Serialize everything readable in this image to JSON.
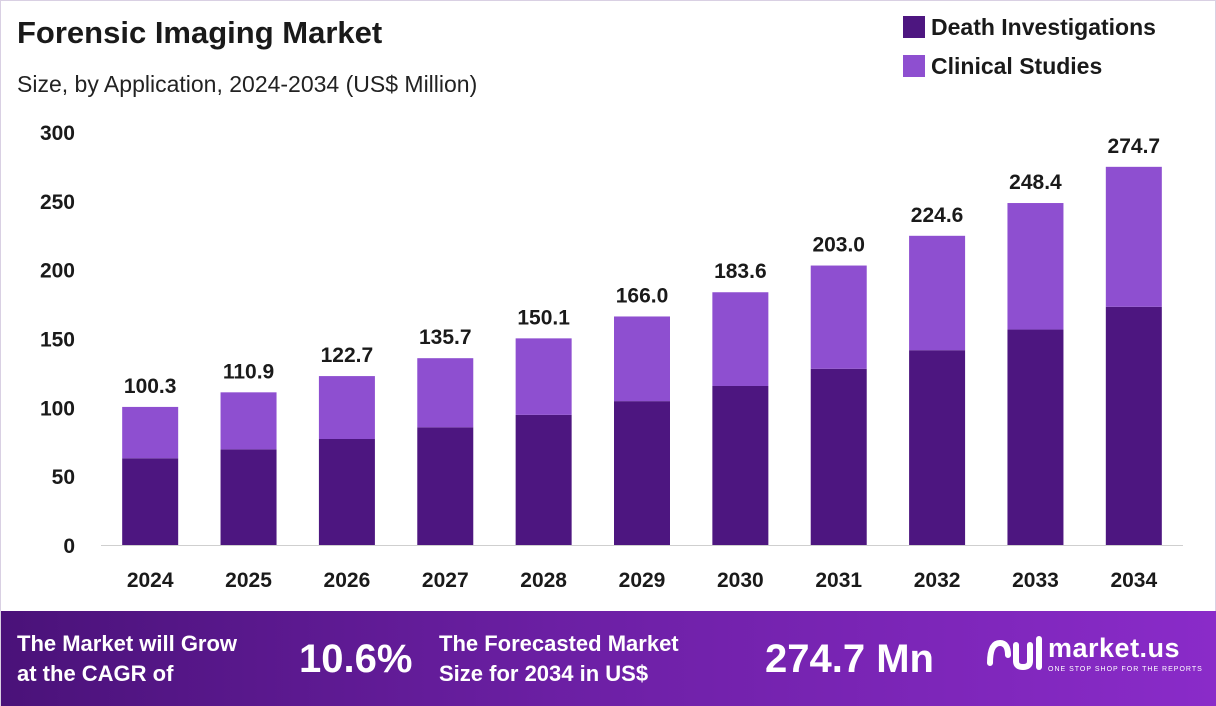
{
  "header": {
    "title": "Forensic Imaging Market",
    "subtitle": "Size, by Application, 2024-2034 (US$ Million)"
  },
  "legend": {
    "items": [
      {
        "label": "Death Investigations",
        "color": "#4d1680"
      },
      {
        "label": "Clinical Studies",
        "color": "#8e4fd0"
      }
    ]
  },
  "chart_data": {
    "type": "bar",
    "stacked": true,
    "categories": [
      "2024",
      "2025",
      "2026",
      "2027",
      "2028",
      "2029",
      "2030",
      "2031",
      "2032",
      "2033",
      "2034"
    ],
    "series": [
      {
        "name": "Death Investigations",
        "color": "#4d1680",
        "values": [
          63.0,
          69.5,
          77.0,
          85.5,
          94.5,
          104.5,
          115.5,
          128.0,
          141.5,
          156.5,
          173.0
        ]
      },
      {
        "name": "Clinical Studies",
        "color": "#8e4fd0",
        "values": [
          37.3,
          41.4,
          45.7,
          50.2,
          55.6,
          61.5,
          68.1,
          75.0,
          83.1,
          91.9,
          101.7
        ]
      }
    ],
    "totals": [
      "100.3",
      "110.9",
      "122.7",
      "135.7",
      "150.1",
      "166.0",
      "183.6",
      "203.0",
      "224.6",
      "248.4",
      "274.7"
    ],
    "ylim": [
      0,
      300
    ],
    "yticks": [
      0,
      50,
      100,
      150,
      200,
      250,
      300
    ],
    "grid": false,
    "legend_position": "top-right"
  },
  "footer": {
    "cagr_label_line1": "The Market will Grow",
    "cagr_label_line2": "at the CAGR of",
    "cagr_value": "10.6%",
    "forecast_label_line1": "The Forecasted Market",
    "forecast_label_line2": "Size for 2034 in US$",
    "forecast_value": "274.7 Mn",
    "brand_name": "market.us",
    "brand_tagline": "ONE STOP SHOP FOR THE REPORTS",
    "brand_icon": "market-us-logo-icon"
  }
}
